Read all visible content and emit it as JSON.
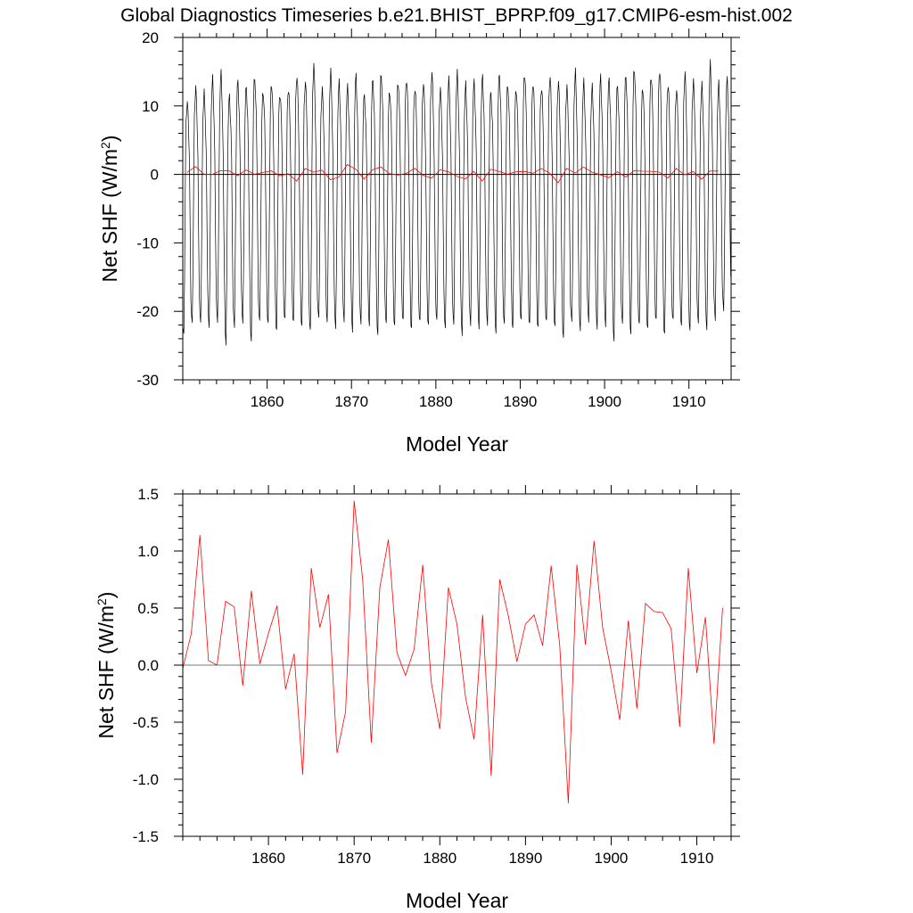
{
  "title": "Global Diagnostics Timeseries b.e21.BHIST_BPRP.f09_g17.CMIP6-esm-hist.002",
  "colors": {
    "monthly": "#000000",
    "annual": "#ff0000",
    "zero_line": "#000000",
    "zero_line_bottom": "#777777"
  },
  "chart_data": [
    {
      "type": "line",
      "xlabel": "Model Year",
      "ylabel_main": "Net SHF (W/m",
      "ylabel_sup": "2",
      "ylabel_close": ")",
      "xlim": [
        1850,
        1915
      ],
      "ylim": [
        -30,
        20
      ],
      "xticks": [
        1860,
        1870,
        1880,
        1890,
        1900,
        1910
      ],
      "xtick_labels": [
        "1860",
        "1870",
        "1880",
        "1890",
        "1900",
        "1910"
      ],
      "yticks": [
        -30,
        -20,
        -10,
        0,
        10,
        20
      ],
      "ytick_labels": [
        "-30",
        "-20",
        "-10",
        "0",
        "10",
        "20"
      ],
      "reference_line": 0,
      "series": [
        {
          "key": "monthly",
          "year_start": 1850,
          "monthly_climatology": [
            -21,
            -22,
            -14,
            -2,
            8,
            11,
            12,
            10,
            7,
            2,
            -8,
            -17
          ],
          "yearly_peak": [
            10.5,
            12.5,
            11.8,
            13.8,
            14.6,
            11.2,
            13.5,
            12.8,
            14.2,
            12.1,
            13.4,
            11.9,
            12.7,
            14.5,
            13.6,
            16.0,
            12.3,
            14.8,
            13.2,
            12.6,
            14.3,
            11.5,
            13.9,
            14.8,
            12.2,
            13.7,
            14.1,
            12.8,
            13.5,
            14.9,
            12.4,
            13.8,
            14.6,
            12.9,
            13.3,
            14.2,
            11.9,
            14.7,
            13.1,
            12.5,
            14.9,
            13.6,
            12.8,
            14.4,
            13.5,
            12.7,
            14.9,
            13.3,
            12.6,
            14.1,
            13.8,
            12.9,
            14.5,
            15.5,
            12.8,
            14.6,
            15.4,
            13.2,
            12.4,
            14.8,
            13.5,
            12.9,
            16.0,
            13.1,
            13.8
          ],
          "yearly_trough": [
            -23.6,
            -21.9,
            -21.7,
            -22.3,
            -21.4,
            -24.6,
            -22.0,
            -21.4,
            -24.1,
            -21.2,
            -21.7,
            -22.9,
            -21.3,
            -21.8,
            -22.5,
            -23.0,
            -21.1,
            -21.6,
            -22.4,
            -21.3,
            -22.7,
            -21.5,
            -21.8,
            -23.2,
            -21.6,
            -22.1,
            -21.4,
            -22.8,
            -21.7,
            -22.3,
            -21.5,
            -22.6,
            -21.9,
            -23.4,
            -21.8,
            -22.2,
            -21.7,
            -22.9,
            -21.6,
            -22.4,
            -21.3,
            -22.0,
            -22.6,
            -21.7,
            -22.5,
            -24.1,
            -21.6,
            -22.8,
            -21.4,
            -22.3,
            -21.9,
            -24.0,
            -21.5,
            -23.2,
            -21.8,
            -22.6,
            -21.4,
            -23.6,
            -21.5,
            -22.4,
            -23.0,
            -21.8,
            -22.6,
            -21.1,
            -19.6
          ]
        },
        {
          "key": "annual",
          "x": [
            1850.5,
            1851.5,
            1852.5,
            1853.5,
            1854.5,
            1855.5,
            1856.5,
            1857.5,
            1858.5,
            1859.5,
            1860.5,
            1861.5,
            1862.5,
            1863.5,
            1864.5,
            1865.5,
            1866.5,
            1867.5,
            1868.5,
            1869.5,
            1870.5,
            1871.5,
            1872.5,
            1873.5,
            1874.5,
            1875.5,
            1876.5,
            1877.5,
            1878.5,
            1879.5,
            1880.5,
            1881.5,
            1882.5,
            1883.5,
            1884.5,
            1885.5,
            1886.5,
            1887.5,
            1888.5,
            1889.5,
            1890.5,
            1891.5,
            1892.5,
            1893.5,
            1894.5,
            1895.5,
            1896.5,
            1897.5,
            1898.5,
            1899.5,
            1900.5,
            1901.5,
            1902.5,
            1903.5,
            1904.5,
            1905.5,
            1906.5,
            1907.5,
            1908.5,
            1909.5,
            1910.5,
            1911.5,
            1912.5,
            1913.5
          ],
          "y": [
            0.28,
            1.14,
            0.04,
            0.0,
            0.56,
            0.51,
            -0.18,
            0.65,
            0.01,
            0.28,
            0.52,
            -0.21,
            0.1,
            -0.96,
            0.85,
            0.33,
            0.62,
            -0.77,
            -0.41,
            1.44,
            0.75,
            -0.68,
            0.68,
            1.1,
            0.11,
            -0.09,
            0.14,
            0.88,
            -0.15,
            -0.56,
            0.68,
            0.36,
            -0.28,
            -0.65,
            0.44,
            -0.97,
            0.75,
            0.43,
            0.03,
            0.36,
            0.44,
            0.17,
            0.87,
            0.17,
            -1.21,
            0.88,
            0.18,
            1.09,
            0.33,
            -0.05,
            -0.48,
            0.39,
            -0.38,
            0.54,
            0.47,
            0.46,
            0.32,
            -0.54,
            0.85,
            -0.07,
            0.42,
            -0.69,
            0.5,
            0.5
          ]
        }
      ]
    },
    {
      "type": "line",
      "xlabel": "Model Year",
      "ylabel_main": "Net SHF (W/m",
      "ylabel_sup": "2",
      "ylabel_close": ")",
      "xlim": [
        1850,
        1914
      ],
      "ylim": [
        -1.5,
        1.5
      ],
      "xticks": [
        1860,
        1870,
        1880,
        1890,
        1900,
        1910
      ],
      "xtick_labels": [
        "1860",
        "1870",
        "1880",
        "1890",
        "1900",
        "1910"
      ],
      "yticks": [
        -1.5,
        -1.0,
        -0.5,
        0.0,
        0.5,
        1.0,
        1.5
      ],
      "ytick_labels": [
        "-1.5",
        "-1.0",
        "-0.5",
        "0.0",
        "0.5",
        "1.0",
        "1.5"
      ],
      "reference_line": 0,
      "series": [
        {
          "key": "annual",
          "x": [
            1850.0,
            1851.0,
            1852.0,
            1853.0,
            1854.0,
            1855.0,
            1856.0,
            1857.0,
            1858.0,
            1859.0,
            1860.0,
            1861.0,
            1862.0,
            1863.0,
            1864.0,
            1865.0,
            1866.0,
            1867.0,
            1868.0,
            1869.0,
            1870.0,
            1871.0,
            1872.0,
            1873.0,
            1874.0,
            1875.0,
            1876.0,
            1877.0,
            1878.0,
            1879.0,
            1880.0,
            1881.0,
            1882.0,
            1883.0,
            1884.0,
            1885.0,
            1886.0,
            1887.0,
            1888.0,
            1889.0,
            1890.0,
            1891.0,
            1892.0,
            1893.0,
            1894.0,
            1895.0,
            1896.0,
            1897.0,
            1898.0,
            1899.0,
            1900.0,
            1901.0,
            1902.0,
            1903.0,
            1904.0,
            1905.0,
            1906.0,
            1907.0,
            1908.0,
            1909.0,
            1910.0,
            1911.0,
            1912.0,
            1913.0
          ],
          "y": [
            -0.03,
            0.28,
            1.14,
            0.04,
            0.0,
            0.56,
            0.51,
            -0.18,
            0.65,
            0.01,
            0.28,
            0.52,
            -0.21,
            0.1,
            -0.96,
            0.85,
            0.33,
            0.62,
            -0.77,
            -0.41,
            1.44,
            0.75,
            -0.68,
            0.68,
            1.1,
            0.11,
            -0.09,
            0.14,
            0.88,
            -0.15,
            -0.56,
            0.68,
            0.36,
            -0.28,
            -0.65,
            0.44,
            -0.97,
            0.75,
            0.43,
            0.03,
            0.36,
            0.44,
            0.17,
            0.87,
            0.17,
            -1.21,
            0.88,
            0.18,
            1.09,
            0.33,
            -0.05,
            -0.48,
            0.39,
            -0.38,
            0.54,
            0.47,
            0.46,
            0.32,
            -0.54,
            0.85,
            -0.07,
            0.42,
            -0.69,
            0.5
          ]
        }
      ]
    }
  ]
}
